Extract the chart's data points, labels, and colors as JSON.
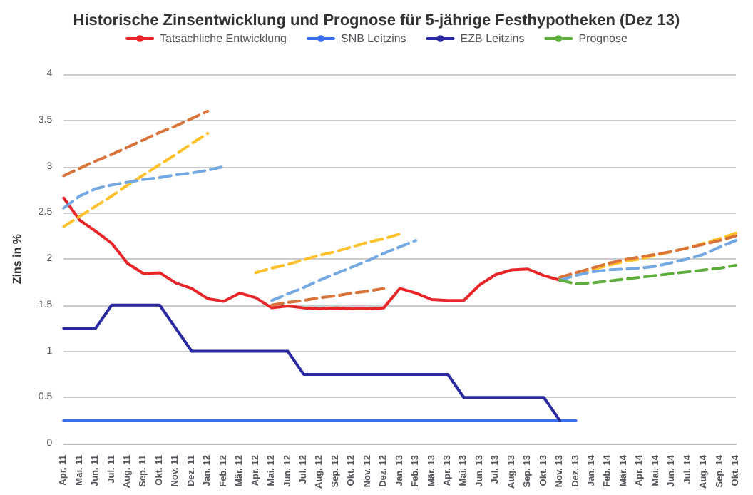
{
  "chart_data": {
    "type": "line",
    "title": "Historische Zinsentwicklung und Prognose für 5-jährige Festhypotheken (Dez 13)",
    "ylabel": "Zins in %",
    "categories": [
      "Apr. 11",
      "Mai. 11",
      "Jun. 11",
      "Jul. 11",
      "Aug. 11",
      "Sep. 11",
      "Okt. 11",
      "Nov. 11",
      "Dez. 11",
      "Jan. 12",
      "Feb. 12",
      "Mär. 12",
      "Apr. 12",
      "Mai. 12",
      "Jun. 12",
      "Jul. 12",
      "Aug. 12",
      "Sep. 12",
      "Okt. 12",
      "Nov. 12",
      "Dez. 12",
      "Jan. 13",
      "Feb. 13",
      "Mär. 13",
      "Apr. 13",
      "Mai. 13",
      "Jun. 13",
      "Jul. 13",
      "Aug. 13",
      "Sep. 13",
      "Okt. 13",
      "Nov. 13",
      "Dez. 13",
      "Jan. 14",
      "Feb. 14",
      "Mär. 14",
      "Apr. 14",
      "Mai. 14",
      "Jun. 14",
      "Jul. 14",
      "Aug. 14",
      "Sep. 14",
      "Okt. 14"
    ],
    "series": [
      {
        "name": "Tatsächliche Entwicklung",
        "color": "#e8262a",
        "line_style": "solid",
        "values": [
          2.66,
          2.42,
          2.3,
          2.17,
          1.95,
          1.84,
          1.85,
          1.74,
          1.68,
          1.57,
          1.54,
          1.63,
          1.58,
          1.47,
          1.49,
          1.47,
          1.46,
          1.47,
          1.46,
          1.46,
          1.47,
          1.68,
          1.63,
          1.56,
          1.55,
          1.55,
          1.72,
          1.83,
          1.88,
          1.89,
          1.82,
          1.77,
          null,
          null,
          null,
          null,
          null,
          null,
          null,
          null,
          null,
          null,
          null
        ]
      },
      {
        "color": "#ffc12b",
        "line_style": "dashed",
        "values": [
          2.35,
          2.46,
          2.57,
          2.68,
          2.8,
          2.91,
          3.02,
          3.13,
          3.25,
          3.36,
          null,
          null,
          1.85,
          1.9,
          1.94,
          1.99,
          2.04,
          2.08,
          2.13,
          2.18,
          2.22,
          2.27,
          null,
          null,
          null,
          null,
          null,
          null,
          null,
          null,
          null,
          1.8,
          1.84,
          1.88,
          1.93,
          1.97,
          2.0,
          2.04,
          2.08,
          2.12,
          2.17,
          2.22,
          2.28
        ]
      },
      {
        "color": "#d9733a",
        "line_style": "dashed",
        "values": [
          2.9,
          2.98,
          3.06,
          3.13,
          3.21,
          3.29,
          3.37,
          3.44,
          3.52,
          3.6,
          null,
          null,
          null,
          1.5,
          1.53,
          1.55,
          1.58,
          1.6,
          1.63,
          1.65,
          1.68,
          null,
          null,
          null,
          null,
          null,
          null,
          null,
          null,
          null,
          null,
          1.8,
          1.85,
          1.9,
          1.95,
          1.99,
          2.02,
          2.05,
          2.08,
          2.12,
          2.16,
          2.2,
          2.25
        ]
      },
      {
        "color": "#74a8e0",
        "line_style": "dashed",
        "values": [
          2.55,
          2.68,
          2.76,
          2.8,
          2.83,
          2.86,
          2.88,
          2.91,
          2.93,
          2.96,
          3.0,
          null,
          null,
          1.55,
          1.62,
          1.69,
          1.77,
          1.84,
          1.91,
          1.98,
          2.06,
          2.13,
          2.2,
          null,
          null,
          null,
          null,
          null,
          null,
          null,
          null,
          1.77,
          1.82,
          1.86,
          1.88,
          1.89,
          1.9,
          1.92,
          1.96,
          2.0,
          2.05,
          2.13,
          2.2
        ]
      },
      {
        "name": "SNB Leitzins",
        "color": "#3a6ef0",
        "line_style": "solid",
        "values": [
          0.25,
          0.25,
          0.25,
          0.25,
          0.25,
          0.25,
          0.25,
          0.25,
          0.25,
          0.25,
          0.25,
          0.25,
          0.25,
          0.25,
          0.25,
          0.25,
          0.25,
          0.25,
          0.25,
          0.25,
          0.25,
          0.25,
          0.25,
          0.25,
          0.25,
          0.25,
          0.25,
          0.25,
          0.25,
          0.25,
          0.25,
          0.25,
          0.25,
          null,
          null,
          null,
          null,
          null,
          null,
          null,
          null,
          null,
          null
        ]
      },
      {
        "name": "EZB Leitzins",
        "color": "#2a2aa0",
        "line_style": "solid",
        "values": [
          1.25,
          1.25,
          1.25,
          1.5,
          1.5,
          1.5,
          1.5,
          1.25,
          1.0,
          1.0,
          1.0,
          1.0,
          1.0,
          1.0,
          1.0,
          0.75,
          0.75,
          0.75,
          0.75,
          0.75,
          0.75,
          0.75,
          0.75,
          0.75,
          0.75,
          0.5,
          0.5,
          0.5,
          0.5,
          0.5,
          0.5,
          0.25,
          null,
          null,
          null,
          null,
          null,
          null,
          null,
          null,
          null,
          null,
          null
        ]
      },
      {
        "name": "Prognose",
        "color": "#5cad3a",
        "line_style": "dashed",
        "values": [
          null,
          null,
          null,
          null,
          null,
          null,
          null,
          null,
          null,
          null,
          null,
          null,
          null,
          null,
          null,
          null,
          null,
          null,
          null,
          null,
          null,
          null,
          null,
          null,
          null,
          null,
          null,
          null,
          null,
          null,
          null,
          1.77,
          1.73,
          1.74,
          1.76,
          1.78,
          1.8,
          1.82,
          1.84,
          1.86,
          1.88,
          1.9,
          1.93
        ]
      }
    ],
    "ylim": [
      0,
      4
    ],
    "yticks": [
      0,
      0.5,
      1,
      1.5,
      2,
      2.5,
      3,
      3.5,
      4
    ],
    "grid": "y",
    "legend": "top",
    "marker": "none"
  }
}
